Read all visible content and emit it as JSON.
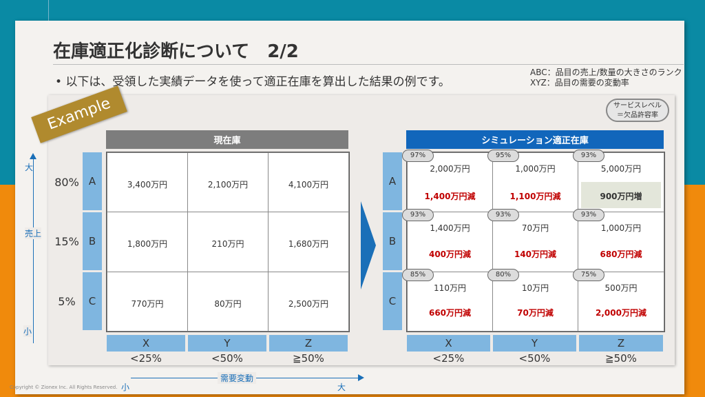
{
  "slide": {
    "title": "在庫適正化診断について　2/2",
    "bullet": "•  以下は、受領した実績データを使って適正在庫を算出した結果の例です。",
    "legend_abc": "ABC：品目の売上/数量の大きさのランク",
    "legend_xyz": "XYZ：品目の需要の変動率",
    "example_badge": "Example",
    "service_level_line1": "サービスレベル",
    "service_level_line2": "＝欠品許容率",
    "copyright": "Copyright © Zionex Inc. All Rights Reserved."
  },
  "axes": {
    "vertical_top": "大",
    "vertical_mid": "売上",
    "vertical_bottom": "小",
    "horizontal_label": "需要変動",
    "horizontal_left": "小",
    "horizontal_right": "大"
  },
  "rows": [
    {
      "pct": "80%",
      "label": "A"
    },
    {
      "pct": "15%",
      "label": "B"
    },
    {
      "pct": "5%",
      "label": "C"
    }
  ],
  "cols": [
    {
      "label": "X",
      "ratio": "<25%"
    },
    {
      "label": "Y",
      "ratio": "<50%"
    },
    {
      "label": "Z",
      "ratio": "≧50%"
    }
  ],
  "current": {
    "header": "現在庫",
    "cells": [
      [
        "3,400万円",
        "2,100万円",
        "4,100万円"
      ],
      [
        "1,800万円",
        "210万円",
        "1,680万円"
      ],
      [
        "770万円",
        "80万円",
        "2,500万円"
      ]
    ]
  },
  "simulation": {
    "header": "シミュレーション適正在庫",
    "cells": [
      [
        {
          "sl": "97%",
          "value": "2,000万円",
          "diff": "1,400万円減",
          "increase": false
        },
        {
          "sl": "95%",
          "value": "1,000万円",
          "diff": "1,100万円減",
          "increase": false
        },
        {
          "sl": "93%",
          "value": "5,000万円",
          "diff": "900万円増",
          "increase": true
        }
      ],
      [
        {
          "sl": "93%",
          "value": "1,400万円",
          "diff": "400万円減",
          "increase": false
        },
        {
          "sl": "93%",
          "value": "70万円",
          "diff": "140万円減",
          "increase": false
        },
        {
          "sl": "93%",
          "value": "1,000万円",
          "diff": "680万円減",
          "increase": false
        }
      ],
      [
        {
          "sl": "85%",
          "value": "110万円",
          "diff": "660万円減",
          "increase": false
        },
        {
          "sl": "80%",
          "value": "10万円",
          "diff": "70万円減",
          "increase": false
        },
        {
          "sl": "75%",
          "value": "500万円",
          "diff": "2,000万円減",
          "increase": false
        }
      ]
    ]
  },
  "colors": {
    "header_current": "#7d7d7d",
    "header_simulation": "#1166bb",
    "axis_blue": "#7fb6e0",
    "decrease_red": "#c00000",
    "increase_bg": "#e3e6da"
  }
}
